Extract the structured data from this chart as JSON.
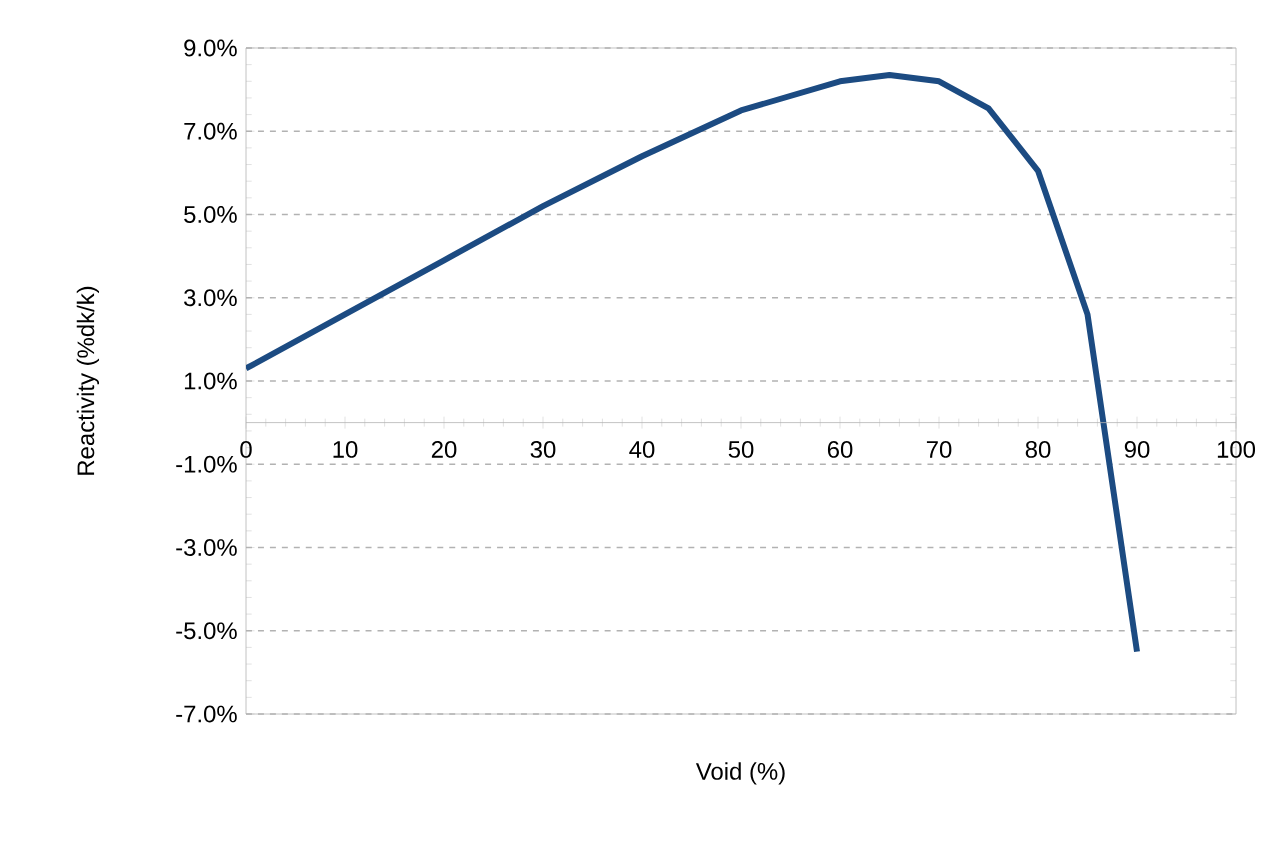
{
  "chart_data": {
    "type": "line",
    "xlabel": "Void (%)",
    "ylabel": "Reactivity (%dk/k)",
    "x": [
      0,
      10,
      20,
      30,
      40,
      50,
      60,
      65,
      70,
      75,
      80,
      85,
      90
    ],
    "series": [
      {
        "color": "#1c4b82",
        "values": [
          1.3,
          2.6,
          3.9,
          5.2,
          6.4,
          7.5,
          8.2,
          8.35,
          8.2,
          7.55,
          6.05,
          2.6,
          -5.5
        ]
      }
    ],
    "xlim": [
      0,
      100
    ],
    "ylim": [
      -7,
      9
    ],
    "xticks": [
      0,
      10,
      20,
      30,
      40,
      50,
      60,
      70,
      80,
      90,
      100
    ],
    "yticks": [
      {
        "value": -7,
        "label": "-7.0%"
      },
      {
        "value": -5,
        "label": "-5.0%"
      },
      {
        "value": -3,
        "label": "-3.0%"
      },
      {
        "value": -1,
        "label": "-1.0%"
      },
      {
        "value": 1,
        "label": "1.0%"
      },
      {
        "value": 3,
        "label": "3.0%"
      },
      {
        "value": 5,
        "label": "5.0%"
      },
      {
        "value": 7,
        "label": "7.0%"
      },
      {
        "value": 9,
        "label": "9.0%"
      }
    ],
    "grid": "y",
    "marker": "none",
    "line_style": "solid"
  }
}
